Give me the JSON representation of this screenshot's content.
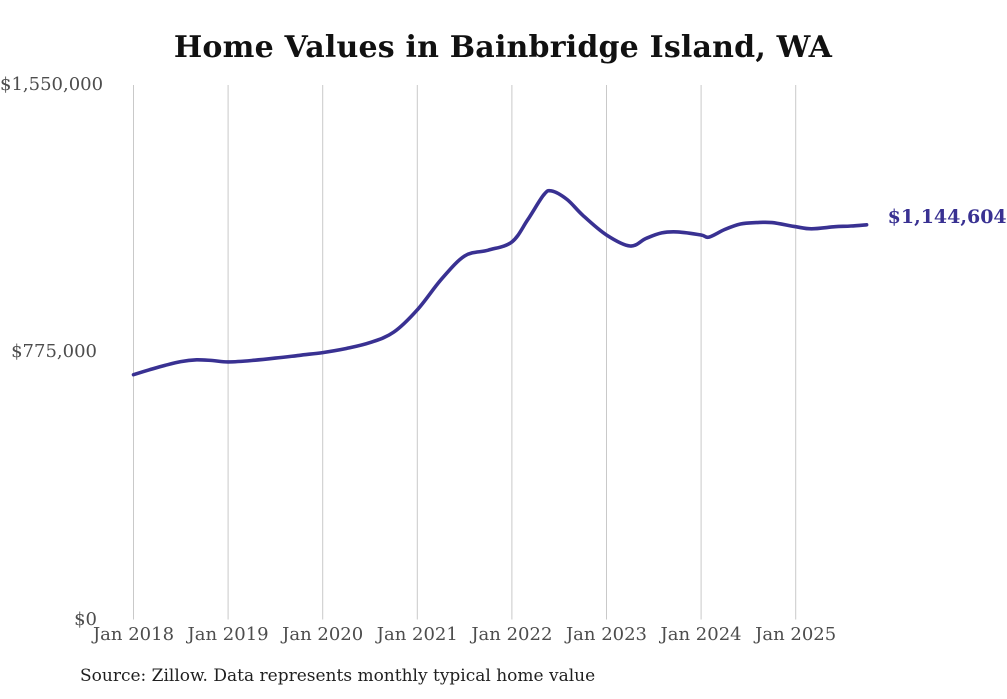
{
  "title": "Home Values in Bainbridge Island, WA",
  "footer": "Source: Zillow. Data represents monthly typical home value",
  "end_label": "$1,144,604",
  "colors": {
    "line": "#393192",
    "grid": "#c9c9c9",
    "axis_text": "#4d4d4d",
    "title_text": "#111111",
    "footer_text": "#1f1f1f",
    "background": "#ffffff"
  },
  "chart_data": {
    "type": "line",
    "title": "Home Values in Bainbridge Island, WA",
    "xlabel": "",
    "ylabel": "",
    "ylim": [
      0,
      1550000
    ],
    "grid": "vertical-only",
    "legend": "none",
    "y_ticks": [
      {
        "value": 0,
        "label": "$0"
      },
      {
        "value": 775000,
        "label": "$775,000"
      },
      {
        "value": 1550000,
        "label": "$1,550,000"
      }
    ],
    "x_ticks": [
      {
        "month": "2018-01",
        "label": "Jan 2018"
      },
      {
        "month": "2019-01",
        "label": "Jan 2019"
      },
      {
        "month": "2020-01",
        "label": "Jan 2020"
      },
      {
        "month": "2021-01",
        "label": "Jan 2021"
      },
      {
        "month": "2022-01",
        "label": "Jan 2022"
      },
      {
        "month": "2023-01",
        "label": "Jan 2023"
      },
      {
        "month": "2024-01",
        "label": "Jan 2024"
      },
      {
        "month": "2025-01",
        "label": "Jan 2025"
      }
    ],
    "end_value_label": "$1,144,604",
    "series": [
      {
        "name": "Monthly typical home value",
        "points": [
          [
            "2018-01",
            710000
          ],
          [
            "2018-03",
            724000
          ],
          [
            "2018-05",
            737000
          ],
          [
            "2018-07",
            748000
          ],
          [
            "2018-09",
            753000
          ],
          [
            "2018-11",
            751000
          ],
          [
            "2019-01",
            747000
          ],
          [
            "2019-04",
            751000
          ],
          [
            "2019-07",
            758000
          ],
          [
            "2019-10",
            766000
          ],
          [
            "2020-01",
            774000
          ],
          [
            "2020-04",
            786000
          ],
          [
            "2020-07",
            803000
          ],
          [
            "2020-10",
            833000
          ],
          [
            "2021-01",
            898000
          ],
          [
            "2021-04",
            985000
          ],
          [
            "2021-07",
            1054000
          ],
          [
            "2021-10",
            1071000
          ],
          [
            "2022-01",
            1095000
          ],
          [
            "2022-03",
            1159000
          ],
          [
            "2022-05",
            1230000
          ],
          [
            "2022-06",
            1243000
          ],
          [
            "2022-08",
            1218000
          ],
          [
            "2022-10",
            1172000
          ],
          [
            "2023-01",
            1115000
          ],
          [
            "2023-04",
            1083000
          ],
          [
            "2023-06",
            1105000
          ],
          [
            "2023-08",
            1121000
          ],
          [
            "2023-10",
            1124000
          ],
          [
            "2024-01",
            1115000
          ],
          [
            "2024-02",
            1109000
          ],
          [
            "2024-04",
            1131000
          ],
          [
            "2024-06",
            1147000
          ],
          [
            "2024-08",
            1151000
          ],
          [
            "2024-10",
            1151000
          ],
          [
            "2025-01",
            1139000
          ],
          [
            "2025-03",
            1133000
          ],
          [
            "2025-06",
            1139000
          ],
          [
            "2025-08",
            1141000
          ],
          [
            "2025-10",
            1144604
          ]
        ]
      }
    ]
  }
}
